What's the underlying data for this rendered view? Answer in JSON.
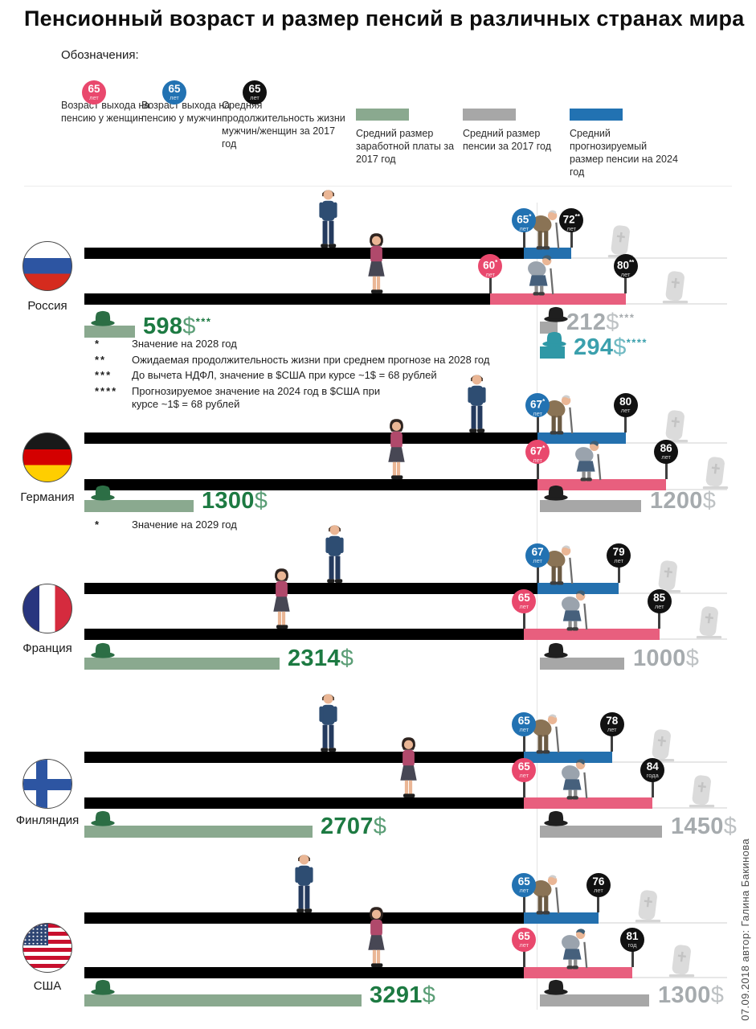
{
  "page": {
    "title": "Пенсионный возраст и размер пенсий в различных странах мира",
    "legend_title": "Обозначения:",
    "author_note": "07.09.2018    автор: Галина Бакинова"
  },
  "colors": {
    "female_accent": "#e9486d",
    "male_accent": "#2272b2",
    "black_accent": "#111111",
    "female_bar": "#e85f7e",
    "male_bar": "#2470ae",
    "salary_bar": "#8aa98f",
    "salary_text": "#1d7a42",
    "salary_hat": "#2c6e45",
    "pension_bar": "#a7a7a7",
    "pension_text": "#a6abae",
    "pension_hat": "#1f1f1f",
    "forecast_bar": "#2f98a6",
    "forecast_text": "#3ba0ad",
    "timeline_bar": "#000000"
  },
  "legend": {
    "badges": [
      {
        "value": "65",
        "unit": "лет",
        "color": "#e9486d",
        "label": "Возраст выхода на пенсию у женщин"
      },
      {
        "value": "65",
        "unit": "лет",
        "color": "#2272b2",
        "label": "Возраст выхода на пенсию у мужчин"
      },
      {
        "value": "65",
        "unit": "лет",
        "color": "#111111",
        "label": "Средняя продолжительность жизни мужчин/женщин за 2017 год"
      }
    ],
    "swatches": [
      {
        "color": "#8aa98f",
        "label": "Средний размер заработной платы за 2017 год"
      },
      {
        "color": "#a7a7a7",
        "label": "Средний размер пенсии за 2017 год"
      },
      {
        "color": "#2272b2",
        "label": "Средний прогнозируемый размер пенсии на 2024 год"
      }
    ]
  },
  "chart_data": {
    "type": "bar",
    "subtype": "pictorial-age-timeline-infographic",
    "money_unit": "USD",
    "age_unit": "years",
    "countries": [
      {
        "name": "Россия",
        "flag": "ru",
        "men": {
          "retire": 65,
          "retire_suffix": "*",
          "retire_unit": "лет",
          "life": 72,
          "life_suffix": "**",
          "life_unit": "лет"
        },
        "women": {
          "retire": 60,
          "retire_suffix": "*",
          "retire_unit": "лет",
          "life": 80,
          "life_suffix": "**",
          "life_unit": "лет"
        },
        "salary": {
          "value": 598,
          "currency": "$",
          "suffix": "***"
        },
        "pension": {
          "value": 212,
          "currency": "$",
          "suffix": "***"
        },
        "pension_forecast": {
          "value": 294,
          "currency": "$",
          "suffix": "****"
        },
        "footnotes": [
          {
            "marker": "*",
            "text": "Значение на 2028 год"
          },
          {
            "marker": "**",
            "text": "Ожидаемая продолжительность жизни при среднем прогнозе на 2028 год"
          },
          {
            "marker": "***",
            "text": "До вычета НДФЛ, значение в $США при курсе ~1$ = 68 рублей"
          },
          {
            "marker": "****",
            "text": "Прогнозируемое значение на 2024 год в $США при\nкурсе ~1$ = 68 рублей"
          }
        ]
      },
      {
        "name": "Германия",
        "flag": "de",
        "men": {
          "retire": 67,
          "retire_suffix": "*",
          "retire_unit": "лет",
          "life": 80,
          "life_suffix": "",
          "life_unit": "лет"
        },
        "women": {
          "retire": 67,
          "retire_suffix": "*",
          "retire_unit": "лет",
          "life": 86,
          "life_suffix": "",
          "life_unit": "лет"
        },
        "salary": {
          "value": 1300,
          "currency": "$",
          "suffix": ""
        },
        "pension": {
          "value": 1200,
          "currency": "$",
          "suffix": ""
        },
        "footnotes": [
          {
            "marker": "*",
            "text": "Значение на 2029 год"
          }
        ]
      },
      {
        "name": "Франция",
        "flag": "fr",
        "men": {
          "retire": 67,
          "retire_suffix": "",
          "retire_unit": "лет",
          "life": 79,
          "life_suffix": "",
          "life_unit": "лет"
        },
        "women": {
          "retire": 65,
          "retire_suffix": "",
          "retire_unit": "лет",
          "life": 85,
          "life_suffix": "",
          "life_unit": "лет"
        },
        "salary": {
          "value": 2314,
          "currency": "$",
          "suffix": ""
        },
        "pension": {
          "value": 1000,
          "currency": "$",
          "suffix": ""
        },
        "footnotes": []
      },
      {
        "name": "Финляндия",
        "flag": "fi",
        "men": {
          "retire": 65,
          "retire_suffix": "",
          "retire_unit": "лет",
          "life": 78,
          "life_suffix": "",
          "life_unit": "лет"
        },
        "women": {
          "retire": 65,
          "retire_suffix": "",
          "retire_unit": "лет",
          "life": 84,
          "life_suffix": "",
          "life_unit": "года"
        },
        "salary": {
          "value": 2707,
          "currency": "$",
          "suffix": ""
        },
        "pension": {
          "value": 1450,
          "currency": "$",
          "suffix": ""
        },
        "footnotes": []
      },
      {
        "name": "США",
        "flag": "us",
        "men": {
          "retire": 65,
          "retire_suffix": "",
          "retire_unit": "лет",
          "life": 76,
          "life_suffix": "",
          "life_unit": "лет"
        },
        "women": {
          "retire": 65,
          "retire_suffix": "",
          "retire_unit": "лет",
          "life": 81,
          "life_suffix": "",
          "life_unit": "год"
        },
        "salary": {
          "value": 3291,
          "currency": "$",
          "suffix": ""
        },
        "pension": {
          "value": 1300,
          "currency": "$",
          "suffix": ""
        },
        "footnotes": []
      }
    ]
  }
}
